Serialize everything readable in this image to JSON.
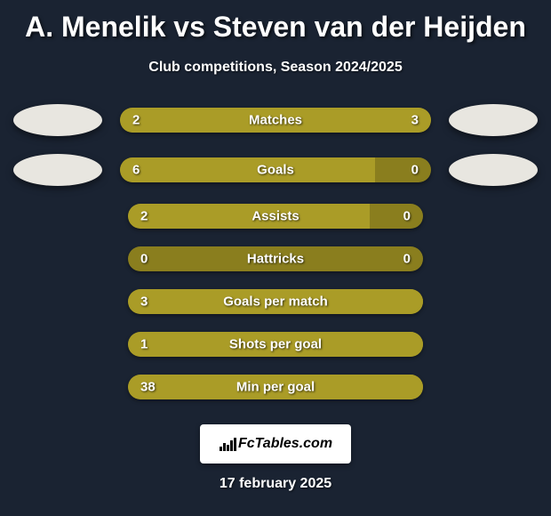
{
  "header": {
    "title": "A. Menelik vs Steven van der Heijden",
    "subtitle": "Club competitions, Season 2024/2025"
  },
  "colors": {
    "background": "#1a2332",
    "bar_track": "#8a7e1e",
    "bar_fill": "#aa9c27",
    "text": "#ffffff",
    "avatar": "#e8e6e0"
  },
  "stats": [
    {
      "label": "Matches",
      "left_value": "2",
      "right_value": "3",
      "left_pct": 40,
      "right_pct": 60,
      "show_avatar": true
    },
    {
      "label": "Goals",
      "left_value": "6",
      "right_value": "0",
      "left_pct": 82,
      "right_pct": 0,
      "show_avatar": true
    },
    {
      "label": "Assists",
      "left_value": "2",
      "right_value": "0",
      "left_pct": 82,
      "right_pct": 0,
      "show_avatar": false
    },
    {
      "label": "Hattricks",
      "left_value": "0",
      "right_value": "0",
      "left_pct": 0,
      "right_pct": 0,
      "show_avatar": false
    },
    {
      "label": "Goals per match",
      "left_value": "3",
      "right_value": "",
      "left_pct": 100,
      "right_pct": 0,
      "show_avatar": false
    },
    {
      "label": "Shots per goal",
      "left_value": "1",
      "right_value": "",
      "left_pct": 100,
      "right_pct": 0,
      "show_avatar": false
    },
    {
      "label": "Min per goal",
      "left_value": "38",
      "right_value": "",
      "left_pct": 100,
      "right_pct": 0,
      "show_avatar": false
    }
  ],
  "footer": {
    "logo_text": "FcTables.com",
    "date": "17 february 2025"
  }
}
